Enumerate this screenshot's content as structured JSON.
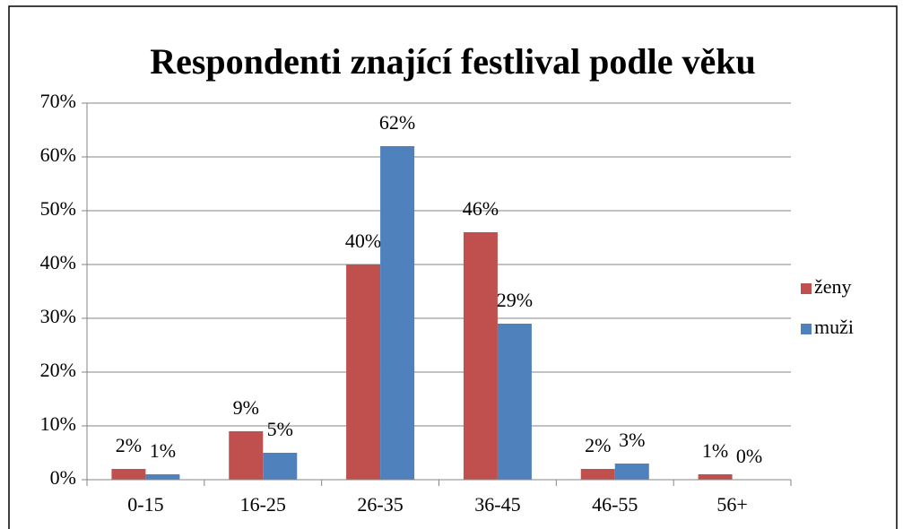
{
  "chart_data": {
    "type": "bar",
    "title": "Respondenti znající festlival podle věku",
    "categories": [
      "0-15",
      "16-25",
      "26-35",
      "36-45",
      "46-55",
      "56+"
    ],
    "series": [
      {
        "name": "ženy",
        "color": "#c0504d",
        "values": [
          2,
          9,
          40,
          46,
          2,
          1
        ],
        "value_labels": [
          "2%",
          "9%",
          "40%",
          "46%",
          "2%",
          "1%"
        ]
      },
      {
        "name": "muži",
        "color": "#4f81bd",
        "values": [
          1,
          5,
          62,
          29,
          3,
          0
        ],
        "value_labels": [
          "1%",
          "5%",
          "62%",
          "29%",
          "3%",
          "0%"
        ]
      }
    ],
    "ylim": [
      0,
      70
    ],
    "yticks": [
      {
        "value": 0,
        "label": "0%"
      },
      {
        "value": 10,
        "label": "10%"
      },
      {
        "value": 20,
        "label": "20%"
      },
      {
        "value": 30,
        "label": "30%"
      },
      {
        "value": 40,
        "label": "40%"
      },
      {
        "value": 50,
        "label": "50%"
      },
      {
        "value": 60,
        "label": "60%"
      },
      {
        "value": 70,
        "label": "70%"
      }
    ],
    "grid": true,
    "legend": "right"
  }
}
